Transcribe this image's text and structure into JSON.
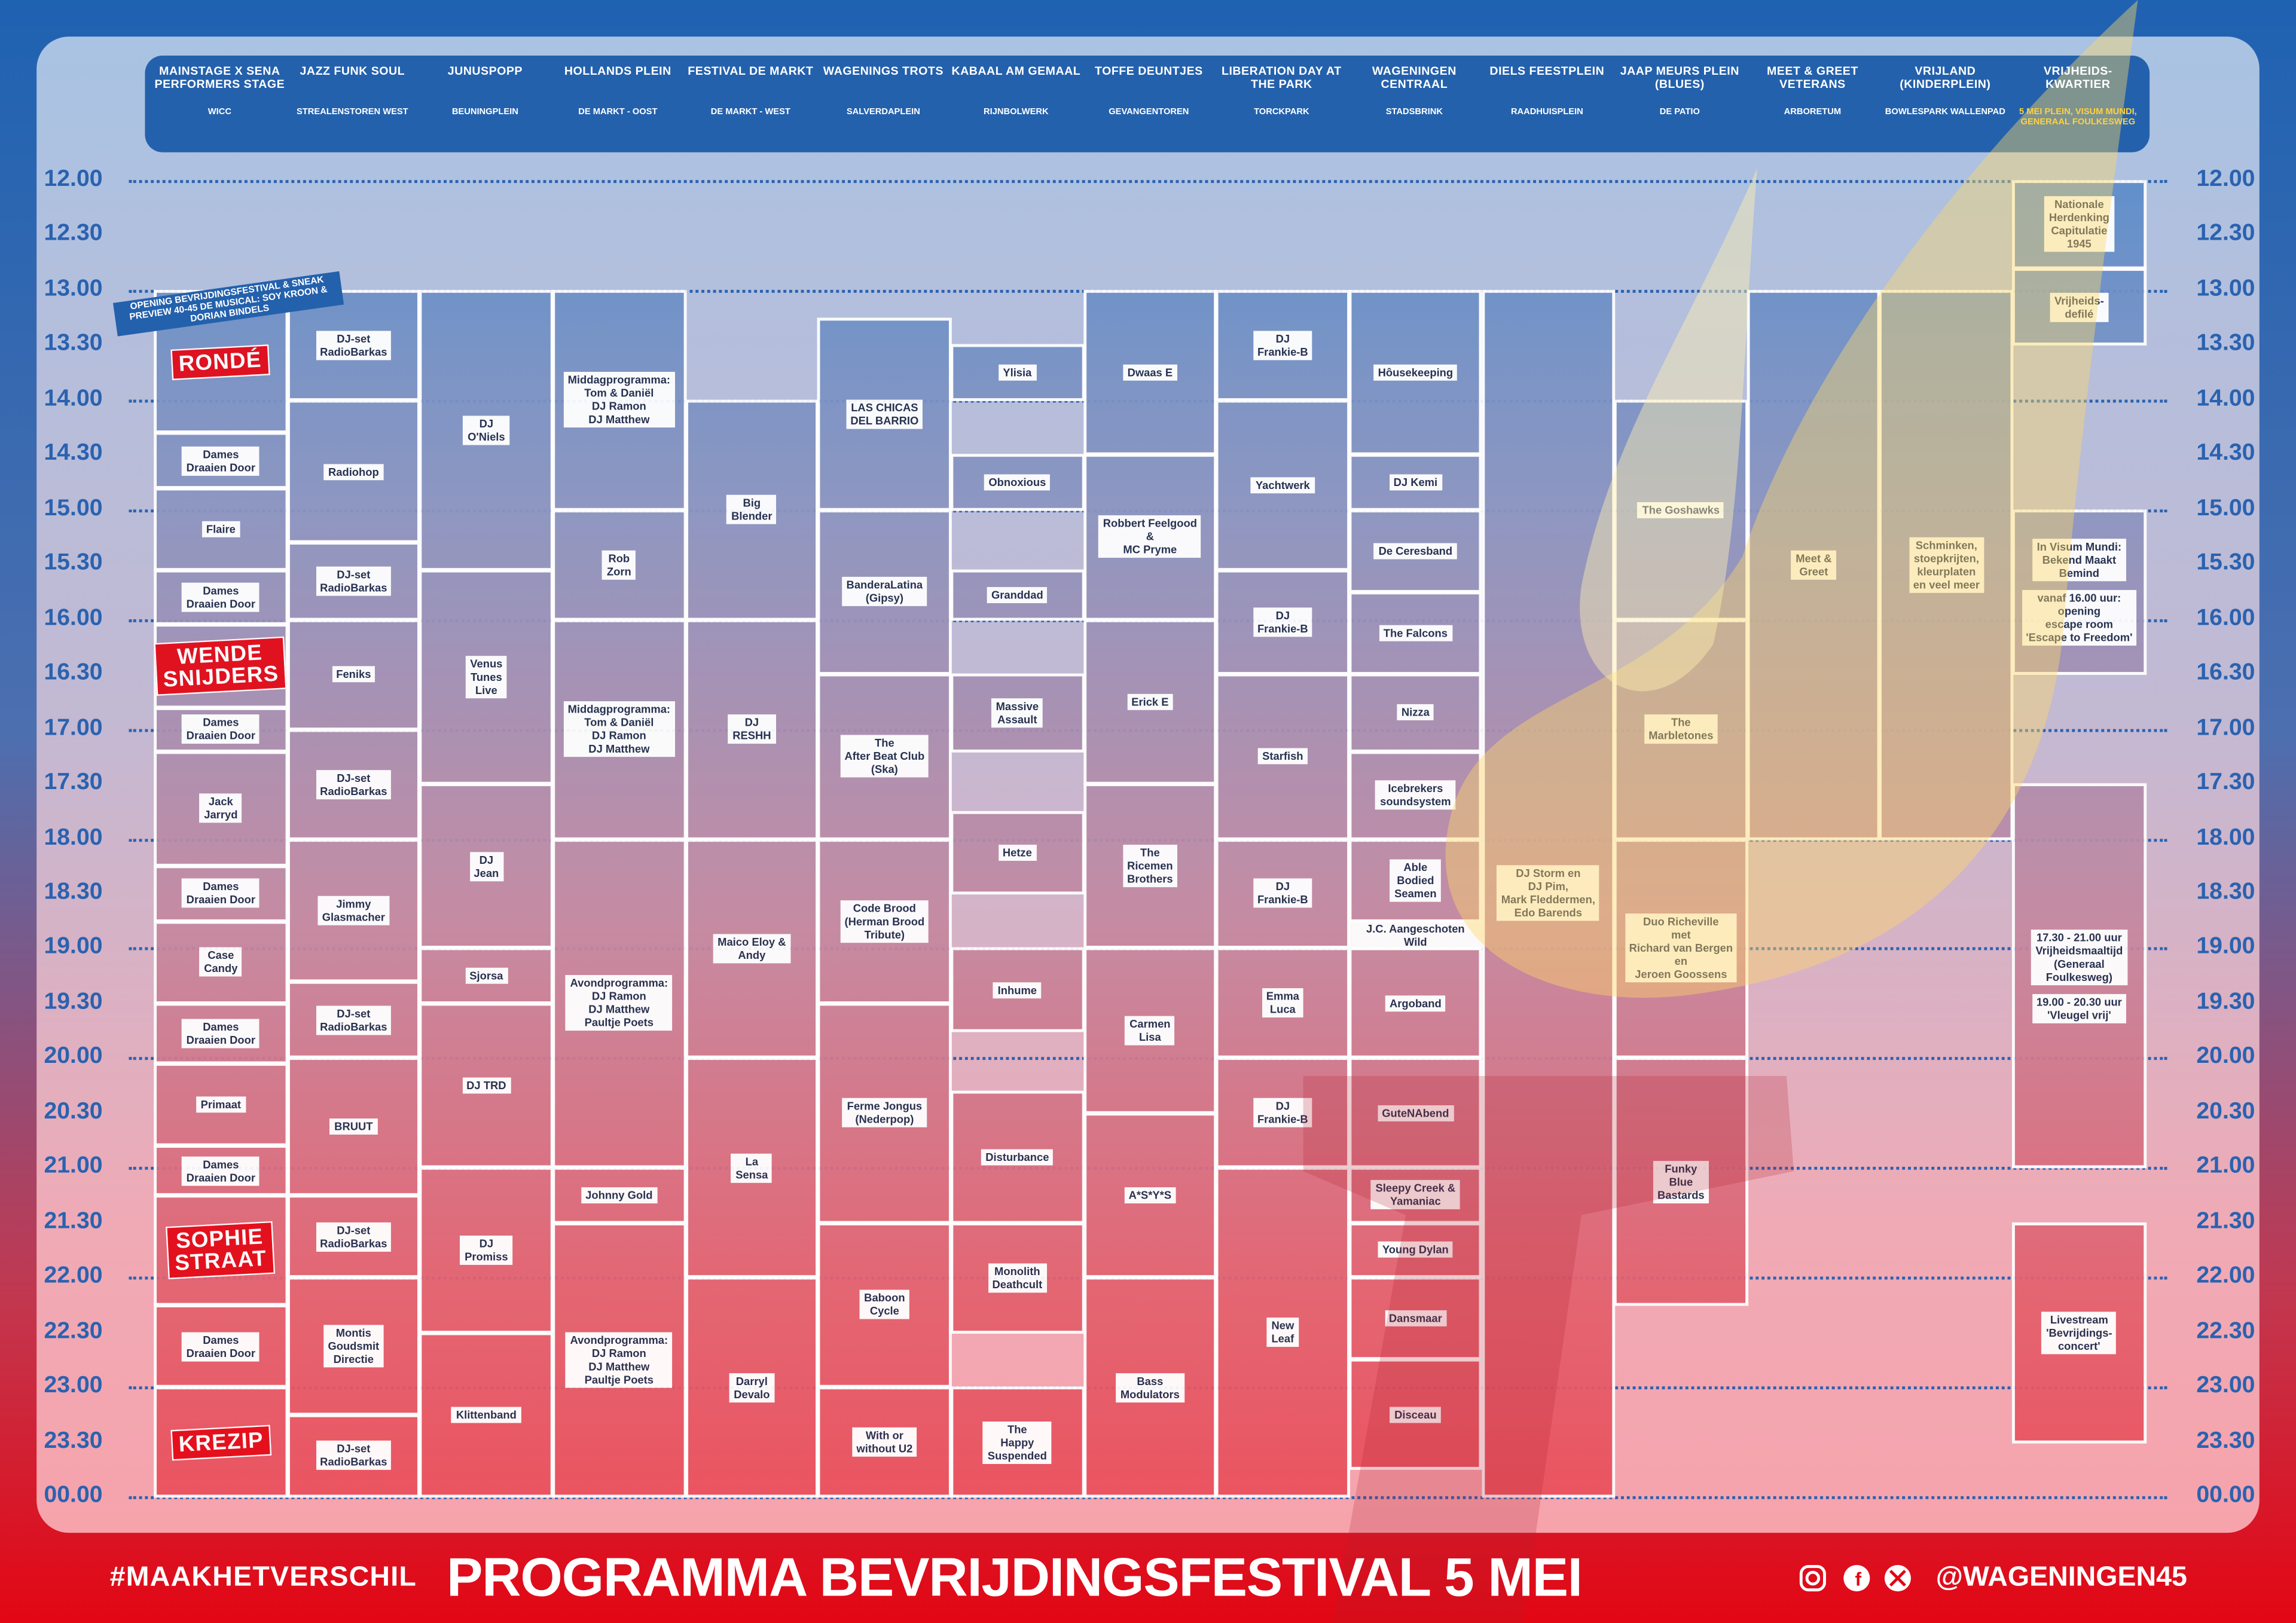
{
  "stages": [
    {
      "name": "MAINSTAGE X SENA PERFORMERS STAGE",
      "location": "WICC"
    },
    {
      "name": "JAZZ FUNK SOUL",
      "location": "STREALENSTOREN WEST"
    },
    {
      "name": "JUNUSPOPP",
      "location": "BEUNINGPLEIN"
    },
    {
      "name": "HOLLANDS PLEIN",
      "location": "DE MARKT - OOST"
    },
    {
      "name": "FESTIVAL DE MARKT",
      "location": "DE MARKT - WEST"
    },
    {
      "name": "WAGENINGS TROTS",
      "location": "SALVERDAPLEIN"
    },
    {
      "name": "KABAAL AM GEMAAL",
      "location": "RIJNBOLWERK"
    },
    {
      "name": "TOFFE DEUNTJES",
      "location": "GEVANGENTOREN"
    },
    {
      "name": "LIBERATION DAY AT THE PARK",
      "location": "TORCKPARK"
    },
    {
      "name": "WAGENINGEN CENTRAAL",
      "location": "STADSBRINK"
    },
    {
      "name": "DIELS FEESTPLEIN",
      "location": "RAADHUISPLEIN"
    },
    {
      "name": "JAAP MEURS PLEIN (BLUES)",
      "location": "DE PATIO"
    },
    {
      "name": "MEET & GREET VETERANS",
      "location": "ARBORETUM"
    },
    {
      "name": "VRIJLAND (KINDERPLEIN)",
      "location": "BOWLESPARK WALLENPAD"
    },
    {
      "name": "VRIJHEIDS-KWARTIER",
      "location": "5 MEI PLEIN, VISUM MUNDI, GENERAAL FOULKESWEG"
    }
  ],
  "times": [
    "12.00",
    "12.30",
    "13.00",
    "13.30",
    "14.00",
    "14.30",
    "15.00",
    "15.30",
    "16.00",
    "16.30",
    "17.00",
    "17.30",
    "18.00",
    "18.30",
    "19.00",
    "19.30",
    "20.00",
    "20.30",
    "21.00",
    "21.30",
    "22.00",
    "22.30",
    "23.00",
    "23.30",
    "00.00"
  ],
  "opening_note": "OPENING BEVRIJDINGSFESTIVAL & SNEAK PREVIEW 40-45 DE MUSICAL: SOY KROON & DORIAN BINDELS",
  "events": [
    {
      "stage": 0,
      "start": 13.0,
      "end": 14.3,
      "label": "RONDÉ",
      "highlight": true
    },
    {
      "stage": 0,
      "start": 14.3,
      "end": 14.8,
      "label": "Dames\nDraaien Door"
    },
    {
      "stage": 0,
      "start": 14.8,
      "end": 15.55,
      "label": "Flaire"
    },
    {
      "stage": 0,
      "start": 15.55,
      "end": 16.05,
      "label": "Dames\nDraaien Door"
    },
    {
      "stage": 0,
      "start": 16.05,
      "end": 16.8,
      "label": "WENDE\nSNIJDERS",
      "highlight": true
    },
    {
      "stage": 0,
      "start": 16.8,
      "end": 17.2,
      "label": "Dames\nDraaien Door"
    },
    {
      "stage": 0,
      "start": 17.2,
      "end": 18.25,
      "label": "Jack\nJarryd"
    },
    {
      "stage": 0,
      "start": 18.25,
      "end": 18.75,
      "label": "Dames\nDraaien Door"
    },
    {
      "stage": 0,
      "start": 18.75,
      "end": 19.5,
      "label": "Case\nCandy"
    },
    {
      "stage": 0,
      "start": 19.5,
      "end": 20.05,
      "label": "Dames\nDraaien Door"
    },
    {
      "stage": 0,
      "start": 20.05,
      "end": 20.8,
      "label": "Primaat"
    },
    {
      "stage": 0,
      "start": 20.8,
      "end": 21.25,
      "label": "Dames\nDraaien Door"
    },
    {
      "stage": 0,
      "start": 21.25,
      "end": 22.25,
      "label": "SOPHIE\nSTRAAT",
      "highlight": true
    },
    {
      "stage": 0,
      "start": 22.25,
      "end": 23.0,
      "label": "Dames\nDraaien Door"
    },
    {
      "stage": 0,
      "start": 23.0,
      "end": 24.0,
      "label": "KREZIP",
      "highlight": true
    },
    {
      "stage": 1,
      "start": 13.0,
      "end": 14.0,
      "label": "DJ-set\nRadioBarkas"
    },
    {
      "stage": 1,
      "start": 14.0,
      "end": 15.3,
      "label": "Radiohop"
    },
    {
      "stage": 1,
      "start": 15.3,
      "end": 16.0,
      "label": "DJ-set\nRadioBarkas"
    },
    {
      "stage": 1,
      "start": 16.0,
      "end": 17.0,
      "label": "Feniks"
    },
    {
      "stage": 1,
      "start": 17.0,
      "end": 18.0,
      "label": "DJ-set\nRadioBarkas"
    },
    {
      "stage": 1,
      "start": 18.0,
      "end": 19.3,
      "label": "Jimmy\nGlasmacher"
    },
    {
      "stage": 1,
      "start": 19.3,
      "end": 20.0,
      "label": "DJ-set\nRadioBarkas"
    },
    {
      "stage": 1,
      "start": 20.0,
      "end": 21.25,
      "label": "BRUUT"
    },
    {
      "stage": 1,
      "start": 21.25,
      "end": 22.0,
      "label": "DJ-set\nRadioBarkas"
    },
    {
      "stage": 1,
      "start": 22.0,
      "end": 23.25,
      "label": "Montis\nGoudsmit\nDirectie"
    },
    {
      "stage": 1,
      "start": 23.25,
      "end": 24.0,
      "label": "DJ-set\nRadioBarkas"
    },
    {
      "stage": 2,
      "start": 13.0,
      "end": 15.55,
      "label": "DJ\nO'Niels"
    },
    {
      "stage": 2,
      "start": 15.55,
      "end": 17.5,
      "label": "Venus\nTunes\nLive"
    },
    {
      "stage": 2,
      "start": 17.5,
      "end": 19.0,
      "label": "DJ\nJean"
    },
    {
      "stage": 2,
      "start": 19.0,
      "end": 19.5,
      "label": "Sjorsa"
    },
    {
      "stage": 2,
      "start": 19.5,
      "end": 21.0,
      "label": "DJ TRD"
    },
    {
      "stage": 2,
      "start": 21.0,
      "end": 22.5,
      "label": "DJ\nPromiss"
    },
    {
      "stage": 2,
      "start": 22.5,
      "end": 24.0,
      "label": "Klittenband"
    },
    {
      "stage": 3,
      "start": 13.0,
      "end": 15.0,
      "label": "Middagprogramma:\nTom & Daniël\nDJ Ramon\nDJ Matthew"
    },
    {
      "stage": 3,
      "start": 15.0,
      "end": 16.0,
      "label": "Rob\nZorn"
    },
    {
      "stage": 3,
      "start": 16.0,
      "end": 18.0,
      "label": "Middagprogramma:\nTom & Daniël\nDJ Ramon\nDJ Matthew"
    },
    {
      "stage": 3,
      "start": 18.0,
      "end": 21.0,
      "label": "Avondprogramma:\nDJ Ramon\nDJ Matthew\nPaultje Poets"
    },
    {
      "stage": 3,
      "start": 21.0,
      "end": 21.5,
      "label": "Johnny Gold"
    },
    {
      "stage": 3,
      "start": 21.5,
      "end": 24.0,
      "label": "Avondprogramma:\nDJ Ramon\nDJ Matthew\nPaultje Poets"
    },
    {
      "stage": 4,
      "start": 14.0,
      "end": 16.0,
      "label": "Big\nBlender"
    },
    {
      "stage": 4,
      "start": 16.0,
      "end": 18.0,
      "label": "DJ\nRESHH"
    },
    {
      "stage": 4,
      "start": 18.0,
      "end": 20.0,
      "label": "Maico Eloy &\nAndy"
    },
    {
      "stage": 4,
      "start": 20.0,
      "end": 22.0,
      "label": "La\nSensa"
    },
    {
      "stage": 4,
      "start": 22.0,
      "end": 24.0,
      "label": "Darryl\nDevalo"
    },
    {
      "stage": 5,
      "start": 13.25,
      "end": 15.0,
      "label": "LAS CHICAS\nDEL BARRIO"
    },
    {
      "stage": 5,
      "start": 15.0,
      "end": 16.5,
      "label": "BanderaLatina\n(Gipsy)"
    },
    {
      "stage": 5,
      "start": 16.5,
      "end": 18.0,
      "label": "The\nAfter Beat Club\n(Ska)"
    },
    {
      "stage": 5,
      "start": 18.0,
      "end": 19.5,
      "label": "Code Brood\n(Herman Brood\nTribute)"
    },
    {
      "stage": 5,
      "start": 19.5,
      "end": 21.5,
      "label": "Ferme Jongus\n(Nederpop)"
    },
    {
      "stage": 5,
      "start": 21.5,
      "end": 23.0,
      "label": "Baboon\nCycle"
    },
    {
      "stage": 5,
      "start": 23.0,
      "end": 24.0,
      "label": "With or\nwithout U2"
    },
    {
      "stage": 6,
      "start": 13.5,
      "end": 14.0,
      "label": "Ylisia"
    },
    {
      "stage": 6,
      "start": 14.5,
      "end": 15.0,
      "label": "Obnoxious"
    },
    {
      "stage": 6,
      "start": 15.55,
      "end": 16.0,
      "label": "Granddad"
    },
    {
      "stage": 6,
      "start": 16.5,
      "end": 17.2,
      "label": "Massive\nAssault"
    },
    {
      "stage": 6,
      "start": 17.75,
      "end": 18.5,
      "label": "Hetze"
    },
    {
      "stage": 6,
      "start": 19.0,
      "end": 19.75,
      "label": "Inhume"
    },
    {
      "stage": 6,
      "start": 20.3,
      "end": 21.5,
      "label": "Disturbance"
    },
    {
      "stage": 6,
      "start": 21.5,
      "end": 22.5,
      "label": "Monolith\nDeathcult"
    },
    {
      "stage": 6,
      "start": 23.0,
      "end": 24.0,
      "label": "The\nHappy\nSuspended"
    },
    {
      "stage": 7,
      "start": 13.0,
      "end": 14.5,
      "label": "Dwaas E"
    },
    {
      "stage": 7,
      "start": 14.5,
      "end": 16.0,
      "label": "Robbert Feelgood\n&\nMC Pryme"
    },
    {
      "stage": 7,
      "start": 16.0,
      "end": 17.5,
      "label": "Erick E"
    },
    {
      "stage": 7,
      "start": 17.5,
      "end": 19.0,
      "label": "The\nRicemen\nBrothers"
    },
    {
      "stage": 7,
      "start": 19.0,
      "end": 20.5,
      "label": "Carmen\nLisa"
    },
    {
      "stage": 7,
      "start": 20.5,
      "end": 22.0,
      "label": "A*S*Y*S"
    },
    {
      "stage": 7,
      "start": 22.0,
      "end": 24.0,
      "label": "Bass\nModulators"
    },
    {
      "stage": 8,
      "start": 13.0,
      "end": 14.0,
      "label": "DJ\nFrankie-B"
    },
    {
      "stage": 8,
      "start": 14.0,
      "end": 15.55,
      "label": "Yachtwerk"
    },
    {
      "stage": 8,
      "start": 15.55,
      "end": 16.5,
      "label": "DJ\nFrankie-B"
    },
    {
      "stage": 8,
      "start": 16.5,
      "end": 18.0,
      "label": "Starfish"
    },
    {
      "stage": 8,
      "start": 18.0,
      "end": 19.0,
      "label": "DJ\nFrankie-B"
    },
    {
      "stage": 8,
      "start": 19.0,
      "end": 20.0,
      "label": "Emma\nLuca"
    },
    {
      "stage": 8,
      "start": 20.0,
      "end": 21.0,
      "label": "DJ\nFrankie-B"
    },
    {
      "stage": 8,
      "start": 21.0,
      "end": 24.0,
      "label": "New\nLeaf"
    },
    {
      "stage": 9,
      "start": 13.0,
      "end": 14.5,
      "label": "Hôusekeeping"
    },
    {
      "stage": 9,
      "start": 14.5,
      "end": 15.0,
      "label": "DJ Kemi"
    },
    {
      "stage": 9,
      "start": 15.0,
      "end": 15.75,
      "label": "De Ceresband"
    },
    {
      "stage": 9,
      "start": 15.75,
      "end": 16.5,
      "label": "The Falcons"
    },
    {
      "stage": 9,
      "start": 16.5,
      "end": 17.2,
      "label": "Nizza"
    },
    {
      "stage": 9,
      "start": 17.2,
      "end": 18.0,
      "label": "Icebrekers\nsoundsystem"
    },
    {
      "stage": 9,
      "start": 18.0,
      "end": 18.75,
      "label": "Able\nBodied\nSeamen"
    },
    {
      "stage": 9,
      "start": 18.75,
      "end": 19.0,
      "label": "J.C. Aangeschoten Wild"
    },
    {
      "stage": 9,
      "start": 19.0,
      "end": 20.0,
      "label": "Argoband"
    },
    {
      "stage": 9,
      "start": 20.0,
      "end": 21.0,
      "label": "GuteNAbend"
    },
    {
      "stage": 9,
      "start": 21.0,
      "end": 21.5,
      "label": "Sleepy Creek &\nYamaniac"
    },
    {
      "stage": 9,
      "start": 21.5,
      "end": 22.0,
      "label": "Young Dylan"
    },
    {
      "stage": 9,
      "start": 22.0,
      "end": 22.75,
      "label": "Dansmaar"
    },
    {
      "stage": 9,
      "start": 22.75,
      "end": 23.75,
      "label": "Disceau"
    },
    {
      "stage": 10,
      "start": 13.0,
      "end": 24.0,
      "label": "DJ Storm en\nDJ Pim,\nMark Fleddermen,\nEdo Barends"
    },
    {
      "stage": 11,
      "start": 14.0,
      "end": 16.0,
      "label": "The Goshawks"
    },
    {
      "stage": 11,
      "start": 16.0,
      "end": 18.0,
      "label": "The\nMarbletones"
    },
    {
      "stage": 11,
      "start": 18.0,
      "end": 20.0,
      "label": "Duo Richeville\nmet\nRichard van Bergen\nen\nJeroen Goossens"
    },
    {
      "stage": 11,
      "start": 20.0,
      "end": 22.25,
      "label": "Funky\nBlue\nBastards"
    },
    {
      "stage": 12,
      "start": 13.0,
      "end": 18.0,
      "label": "Meet &\nGreet"
    },
    {
      "stage": 13,
      "start": 13.0,
      "end": 18.0,
      "label": "Schminken,\nstoepkrijten,\nkleurplaten\nen veel meer"
    },
    {
      "stage": 14,
      "start": 12.0,
      "end": 12.8,
      "label": "Nationale\nHerdenking\nCapitulatie\n1945"
    },
    {
      "stage": 14,
      "start": 12.8,
      "end": 13.5,
      "label": "Vrijheids-\ndefilé"
    },
    {
      "stage": 14,
      "start": 15.0,
      "end": 16.5,
      "label": [
        "In Visum Mundi:\nBekend Maakt\nBemind",
        "vanaf 16.00 uur:\nopening\nescape room\n'Escape to Freedom'"
      ]
    },
    {
      "stage": 14,
      "start": 17.5,
      "end": 21.0,
      "label": [
        "17.30 - 21.00 uur\nVrijheidsmaaltijd\n(Generaal\nFoulkesweg)",
        "19.00 - 20.30 uur\n'Vleugel vrij'"
      ]
    },
    {
      "stage": 14,
      "start": 21.5,
      "end": 23.5,
      "label": "Livestream\n'Bevrijdings-\nconcert'"
    }
  ],
  "footer": {
    "hashtag": "#MAAKHETVERSCHIL",
    "title": "PROGRAMMA BEVRIJDINGSFESTIVAL 5 MEI",
    "handle": "@WAGENINGEN45"
  }
}
